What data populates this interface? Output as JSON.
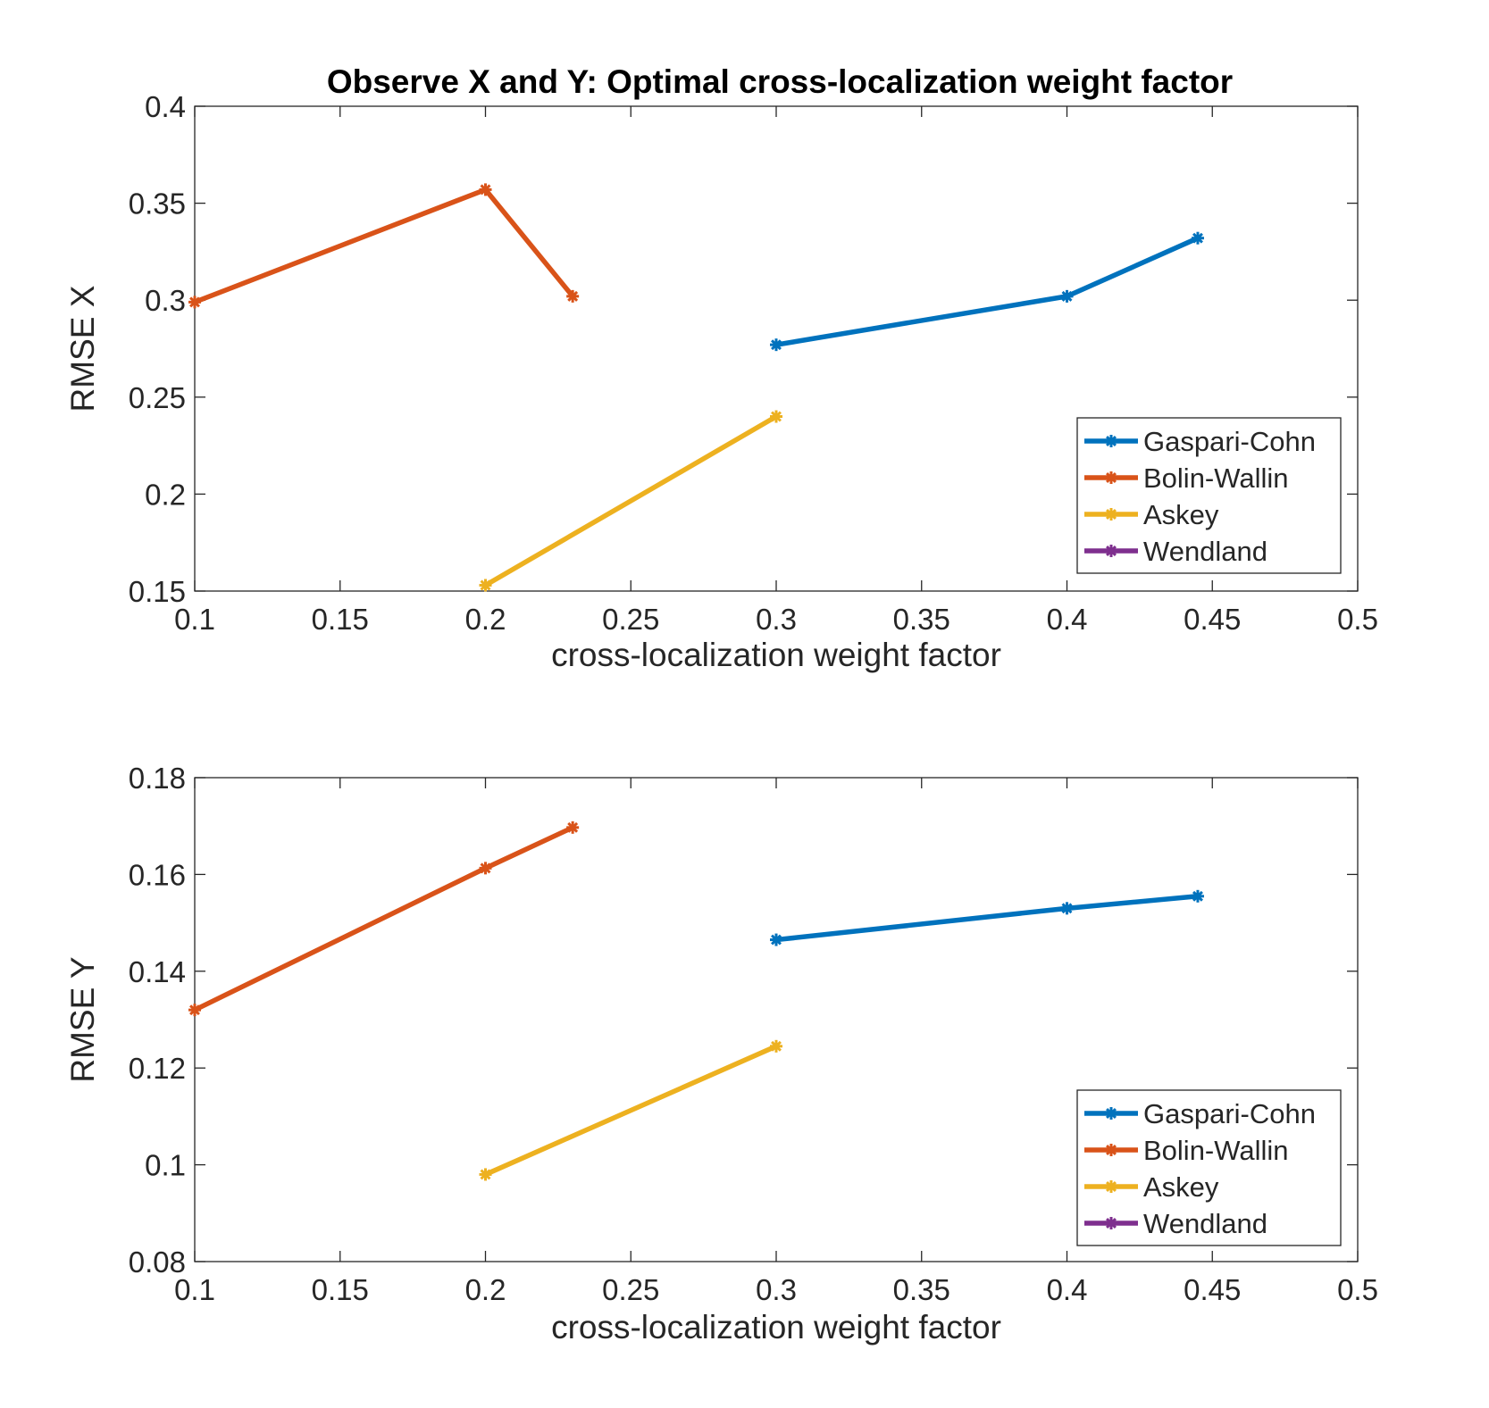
{
  "figure": {
    "title": "Observe X and Y: Optimal cross-localization weight factor"
  },
  "legend": {
    "entries": [
      {
        "name": "Gaspari-Cohn",
        "color": "#0072BD"
      },
      {
        "name": "Bolin-Wallin",
        "color": "#D95319"
      },
      {
        "name": "Askey",
        "color": "#EDB120"
      },
      {
        "name": "Wendland",
        "color": "#7E2F8E"
      }
    ],
    "placement": "bottom-right"
  },
  "chart_data": [
    {
      "type": "line",
      "title": "Observe X and Y: Optimal cross-localization weight factor",
      "xlabel": "cross-localization weight factor",
      "ylabel": "RMSE X",
      "xlim": [
        0.1,
        0.5
      ],
      "ylim": [
        0.15,
        0.4
      ],
      "xticks": [
        "0.1",
        "0.15",
        "0.2",
        "0.25",
        "0.3",
        "0.35",
        "0.4",
        "0.45",
        "0.5"
      ],
      "yticks": [
        "0.15",
        "0.2",
        "0.25",
        "0.3",
        "0.35",
        "0.4"
      ],
      "grid": false,
      "legend_placement": "bottom-right",
      "series": [
        {
          "name": "Gaspari-Cohn",
          "color": "#0072BD",
          "x": [
            0.3,
            0.4,
            0.445
          ],
          "y": [
            0.277,
            0.302,
            0.332
          ]
        },
        {
          "name": "Bolin-Wallin",
          "color": "#D95319",
          "x": [
            0.1,
            0.2,
            0.23
          ],
          "y": [
            0.299,
            0.357,
            0.302
          ]
        },
        {
          "name": "Askey",
          "color": "#EDB120",
          "x": [
            0.2,
            0.3
          ],
          "y": [
            0.153,
            0.24
          ]
        },
        {
          "name": "Wendland",
          "color": "#7E2F8E",
          "x": [],
          "y": []
        }
      ]
    },
    {
      "type": "line",
      "title": "",
      "xlabel": "cross-localization weight factor",
      "ylabel": "RMSE Y",
      "xlim": [
        0.1,
        0.5
      ],
      "ylim": [
        0.08,
        0.18
      ],
      "xticks": [
        "0.1",
        "0.15",
        "0.2",
        "0.25",
        "0.3",
        "0.35",
        "0.4",
        "0.45",
        "0.5"
      ],
      "yticks": [
        "0.08",
        "0.1",
        "0.12",
        "0.14",
        "0.16",
        "0.18"
      ],
      "grid": false,
      "legend_placement": "bottom-right",
      "series": [
        {
          "name": "Gaspari-Cohn",
          "color": "#0072BD",
          "x": [
            0.3,
            0.4,
            0.445
          ],
          "y": [
            0.1465,
            0.153,
            0.1555
          ]
        },
        {
          "name": "Bolin-Wallin",
          "color": "#D95319",
          "x": [
            0.1,
            0.2,
            0.23
          ],
          "y": [
            0.132,
            0.1613,
            0.1697
          ]
        },
        {
          "name": "Askey",
          "color": "#EDB120",
          "x": [
            0.2,
            0.3
          ],
          "y": [
            0.098,
            0.1245
          ]
        },
        {
          "name": "Wendland",
          "color": "#7E2F8E",
          "x": [],
          "y": []
        }
      ]
    }
  ]
}
